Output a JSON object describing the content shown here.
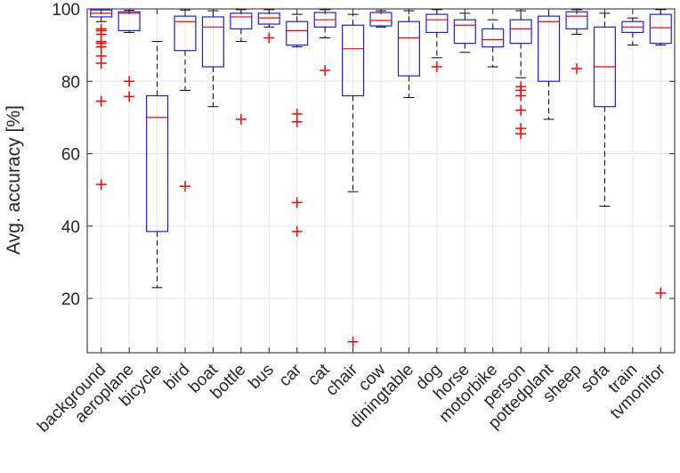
{
  "chart_data": {
    "type": "box",
    "title": "",
    "xlabel": "",
    "ylabel": "Avg. accuracy [%]",
    "ylim": [
      5,
      100
    ],
    "yticks": [
      20,
      40,
      60,
      80,
      100
    ],
    "grid": true,
    "colors": {
      "box": "#1a1aff",
      "median": "#ff0000",
      "whisker": "#000000",
      "outlier": "#ff0000",
      "grid": "#e6e6e6",
      "axis": "#262626"
    },
    "categories": [
      "background",
      "aeroplane",
      "bicycle",
      "bird",
      "boat",
      "bottle",
      "bus",
      "car",
      "cat",
      "chair",
      "cow",
      "diningtable",
      "dog",
      "horse",
      "motorbike",
      "person",
      "pottedplant",
      "sheep",
      "sofa",
      "train",
      "tvmonitor"
    ],
    "boxes": [
      {
        "min": 96.5,
        "q1": 97.8,
        "median": 98.8,
        "q3": 99.7,
        "max": 100,
        "outliers": [
          94.5,
          94,
          93,
          91,
          90.5,
          89.5,
          87,
          85,
          74.5,
          51.5
        ]
      },
      {
        "min": 93.5,
        "q1": 94,
        "median": 98.8,
        "q3": 99.2,
        "max": 99.6,
        "outliers": [
          80,
          75.8
        ]
      },
      {
        "min": 23,
        "q1": 38.5,
        "median": 70,
        "q3": 76,
        "max": 91,
        "outliers": []
      },
      {
        "min": 77.5,
        "q1": 88.5,
        "median": 96.5,
        "q3": 98,
        "max": 99.7,
        "outliers": [
          51
        ]
      },
      {
        "min": 73,
        "q1": 84,
        "median": 95,
        "q3": 97.8,
        "max": 99.5,
        "outliers": []
      },
      {
        "min": 91,
        "q1": 94.5,
        "median": 97.8,
        "q3": 98.8,
        "max": 99.8,
        "outliers": [
          69.5
        ]
      },
      {
        "min": 95,
        "q1": 95.8,
        "median": 97.5,
        "q3": 98.8,
        "max": 99.8,
        "outliers": [
          92
        ]
      },
      {
        "min": 89.5,
        "q1": 90,
        "median": 94,
        "q3": 96.5,
        "max": 98.5,
        "outliers": [
          71,
          68.8,
          46.5,
          38.5
        ]
      },
      {
        "min": 92,
        "q1": 95,
        "median": 97,
        "q3": 99,
        "max": 99.8,
        "outliers": [
          83
        ]
      },
      {
        "min": 49.5,
        "q1": 76,
        "median": 89,
        "q3": 95.5,
        "max": 98.5,
        "outliers": [
          8
        ]
      },
      {
        "min": 95,
        "q1": 95.3,
        "median": 96.8,
        "q3": 99,
        "max": 99.5,
        "outliers": []
      },
      {
        "min": 75.5,
        "q1": 81.5,
        "median": 92,
        "q3": 96.5,
        "max": 99.5,
        "outliers": []
      },
      {
        "min": 86.5,
        "q1": 93.5,
        "median": 97,
        "q3": 98.5,
        "max": 99.8,
        "outliers": [
          84
        ]
      },
      {
        "min": 88,
        "q1": 90.5,
        "median": 95.5,
        "q3": 97,
        "max": 98.8,
        "outliers": []
      },
      {
        "min": 84,
        "q1": 89.5,
        "median": 91.5,
        "q3": 94.5,
        "max": 97,
        "outliers": []
      },
      {
        "min": 81,
        "q1": 90.5,
        "median": 94.5,
        "q3": 97,
        "max": 99.5,
        "outliers": [
          78.5,
          77.5,
          76,
          72,
          67,
          65.5
        ]
      },
      {
        "min": 69.5,
        "q1": 80,
        "median": 96.5,
        "q3": 98,
        "max": 100,
        "outliers": []
      },
      {
        "min": 93,
        "q1": 94.5,
        "median": 98,
        "q3": 99.2,
        "max": 99.8,
        "outliers": [
          83.5
        ]
      },
      {
        "min": 45.5,
        "q1": 73,
        "median": 84,
        "q3": 95,
        "max": 98.8,
        "outliers": []
      },
      {
        "min": 90,
        "q1": 93.5,
        "median": 95,
        "q3": 96.5,
        "max": 97.5,
        "outliers": []
      },
      {
        "min": 90,
        "q1": 90.5,
        "median": 94.8,
        "q3": 98.5,
        "max": 99.8,
        "outliers": [
          21.5
        ]
      }
    ]
  }
}
